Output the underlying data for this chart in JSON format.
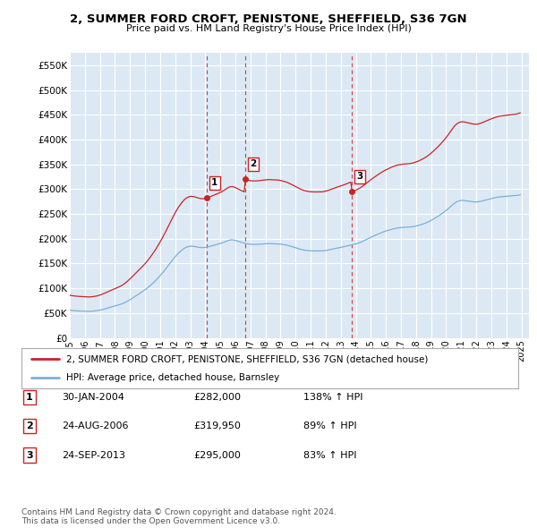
{
  "title": "2, SUMMER FORD CROFT, PENISTONE, SHEFFIELD, S36 7GN",
  "subtitle": "Price paid vs. HM Land Registry's House Price Index (HPI)",
  "ylim": [
    0,
    575000
  ],
  "yticks": [
    0,
    50000,
    100000,
    150000,
    200000,
    250000,
    300000,
    350000,
    400000,
    450000,
    500000,
    550000
  ],
  "xlim": [
    1995.0,
    2025.5
  ],
  "background_color": "#ffffff",
  "plot_bg_color": "#dce9f5",
  "grid_color": "#ffffff",
  "sale_color": "#cc2222",
  "hpi_color": "#7ab0d8",
  "vline_color": "#cc2222",
  "sale_points": [
    {
      "date": 2004.08,
      "price": 282000,
      "label": "1"
    },
    {
      "date": 2006.65,
      "price": 319950,
      "label": "2"
    },
    {
      "date": 2013.73,
      "price": 295000,
      "label": "3"
    }
  ],
  "legend_sale_label": "2, SUMMER FORD CROFT, PENISTONE, SHEFFIELD, S36 7GN (detached house)",
  "legend_hpi_label": "HPI: Average price, detached house, Barnsley",
  "table_rows": [
    {
      "num": "1",
      "date": "30-JAN-2004",
      "price": "£282,000",
      "pct": "138% ↑ HPI"
    },
    {
      "num": "2",
      "date": "24-AUG-2006",
      "price": "£319,950",
      "pct": "89% ↑ HPI"
    },
    {
      "num": "3",
      "date": "24-SEP-2013",
      "price": "£295,000",
      "pct": "83% ↑ HPI"
    }
  ],
  "footer": "Contains HM Land Registry data © Crown copyright and database right 2024.\nThis data is licensed under the Open Government Licence v3.0.",
  "xtick_years": [
    1995,
    1996,
    1997,
    1998,
    1999,
    2000,
    2001,
    2002,
    2003,
    2004,
    2005,
    2006,
    2007,
    2008,
    2009,
    2010,
    2011,
    2012,
    2013,
    2014,
    2015,
    2016,
    2017,
    2018,
    2019,
    2020,
    2021,
    2022,
    2023,
    2024,
    2025
  ],
  "hpi_monthly": [
    56000,
    55500,
    55200,
    55000,
    54800,
    54600,
    54500,
    54300,
    54200,
    54100,
    54000,
    53900,
    53800,
    53700,
    53700,
    53600,
    53600,
    53700,
    53900,
    54100,
    54400,
    54700,
    55100,
    55500,
    56000,
    56600,
    57200,
    57900,
    58600,
    59300,
    60100,
    60900,
    61600,
    62300,
    63100,
    63800,
    64500,
    65200,
    65900,
    66600,
    67300,
    68200,
    69200,
    70300,
    71500,
    72800,
    74200,
    75700,
    77200,
    78800,
    80400,
    82100,
    83800,
    85400,
    87000,
    88600,
    90300,
    92000,
    93700,
    95300,
    97100,
    99000,
    101000,
    103000,
    105200,
    107500,
    109800,
    112200,
    114700,
    117300,
    120000,
    122700,
    125500,
    128400,
    131400,
    134500,
    137700,
    141000,
    144300,
    147700,
    151100,
    154400,
    157600,
    160700,
    163700,
    166600,
    169300,
    171900,
    174300,
    176500,
    178500,
    180300,
    181800,
    183000,
    183900,
    184600,
    185000,
    185100,
    185000,
    184700,
    184200,
    183600,
    183100,
    182600,
    182300,
    182100,
    182100,
    182200,
    182500,
    182900,
    183500,
    184100,
    184800,
    185500,
    186200,
    186900,
    187600,
    188200,
    188800,
    189500,
    190200,
    191000,
    192000,
    193100,
    194200,
    195300,
    196300,
    197100,
    197700,
    197900,
    197800,
    197300,
    196600,
    195800,
    194900,
    194100,
    193300,
    192500,
    191800,
    191100,
    190500,
    190000,
    189500,
    189200,
    188900,
    188700,
    188600,
    188600,
    188600,
    188700,
    188800,
    189000,
    189200,
    189400,
    189600,
    189800,
    190000,
    190100,
    190200,
    190200,
    190100,
    190100,
    190000,
    189900,
    189900,
    189800,
    189700,
    189500,
    189200,
    188800,
    188400,
    188000,
    187500,
    187000,
    186400,
    185700,
    185000,
    184200,
    183400,
    182600,
    181800,
    181000,
    180200,
    179400,
    178700,
    178100,
    177500,
    177000,
    176600,
    176300,
    176000,
    175800,
    175600,
    175500,
    175400,
    175400,
    175400,
    175400,
    175400,
    175400,
    175400,
    175500,
    175700,
    176000,
    176400,
    176800,
    177300,
    177800,
    178400,
    178900,
    179500,
    180100,
    180600,
    181100,
    181600,
    182100,
    182600,
    183100,
    183700,
    184200,
    184800,
    185400,
    186000,
    186600,
    187200,
    187800,
    188400,
    189000,
    189600,
    190300,
    191100,
    192000,
    193000,
    194100,
    195300,
    196600,
    197900,
    199200,
    200500,
    201800,
    203000,
    204200,
    205400,
    206500,
    207600,
    208700,
    209800,
    210900,
    211900,
    212900,
    213900,
    214800,
    215600,
    216400,
    217200,
    218000,
    218700,
    219400,
    220000,
    220600,
    221100,
    221600,
    222000,
    222300,
    222600,
    222800,
    223000,
    223100,
    223200,
    223300,
    223400,
    223600,
    223900,
    224200,
    224600,
    225100,
    225700,
    226300,
    227000,
    227700,
    228500,
    229300,
    230200,
    231100,
    232100,
    233200,
    234400,
    235600,
    237000,
    238400,
    239900,
    241400,
    242900,
    244500,
    246100,
    247800,
    249500,
    251300,
    253100,
    255100,
    257100,
    259200,
    261400,
    263700,
    266000,
    268300,
    270400,
    272300,
    273900,
    275200,
    276100,
    276800,
    277200,
    277300,
    277200,
    276900,
    276500,
    276100,
    275700,
    275200,
    274900,
    274500,
    274300,
    274200,
    274200,
    274300,
    274600,
    275100,
    275700,
    276300,
    277000,
    277700,
    278400,
    279100,
    279800,
    280400,
    281100,
    281700,
    282300,
    282800,
    283300,
    283800,
    284200,
    284500,
    284800,
    285000,
    285200,
    285400,
    285600,
    285800,
    285900,
    286100,
    286300,
    286500,
    286700,
    286900,
    287200,
    287600,
    288100,
    288700
  ],
  "hpi_start_year": 1995.0,
  "hpi_month_step": 0.08333
}
